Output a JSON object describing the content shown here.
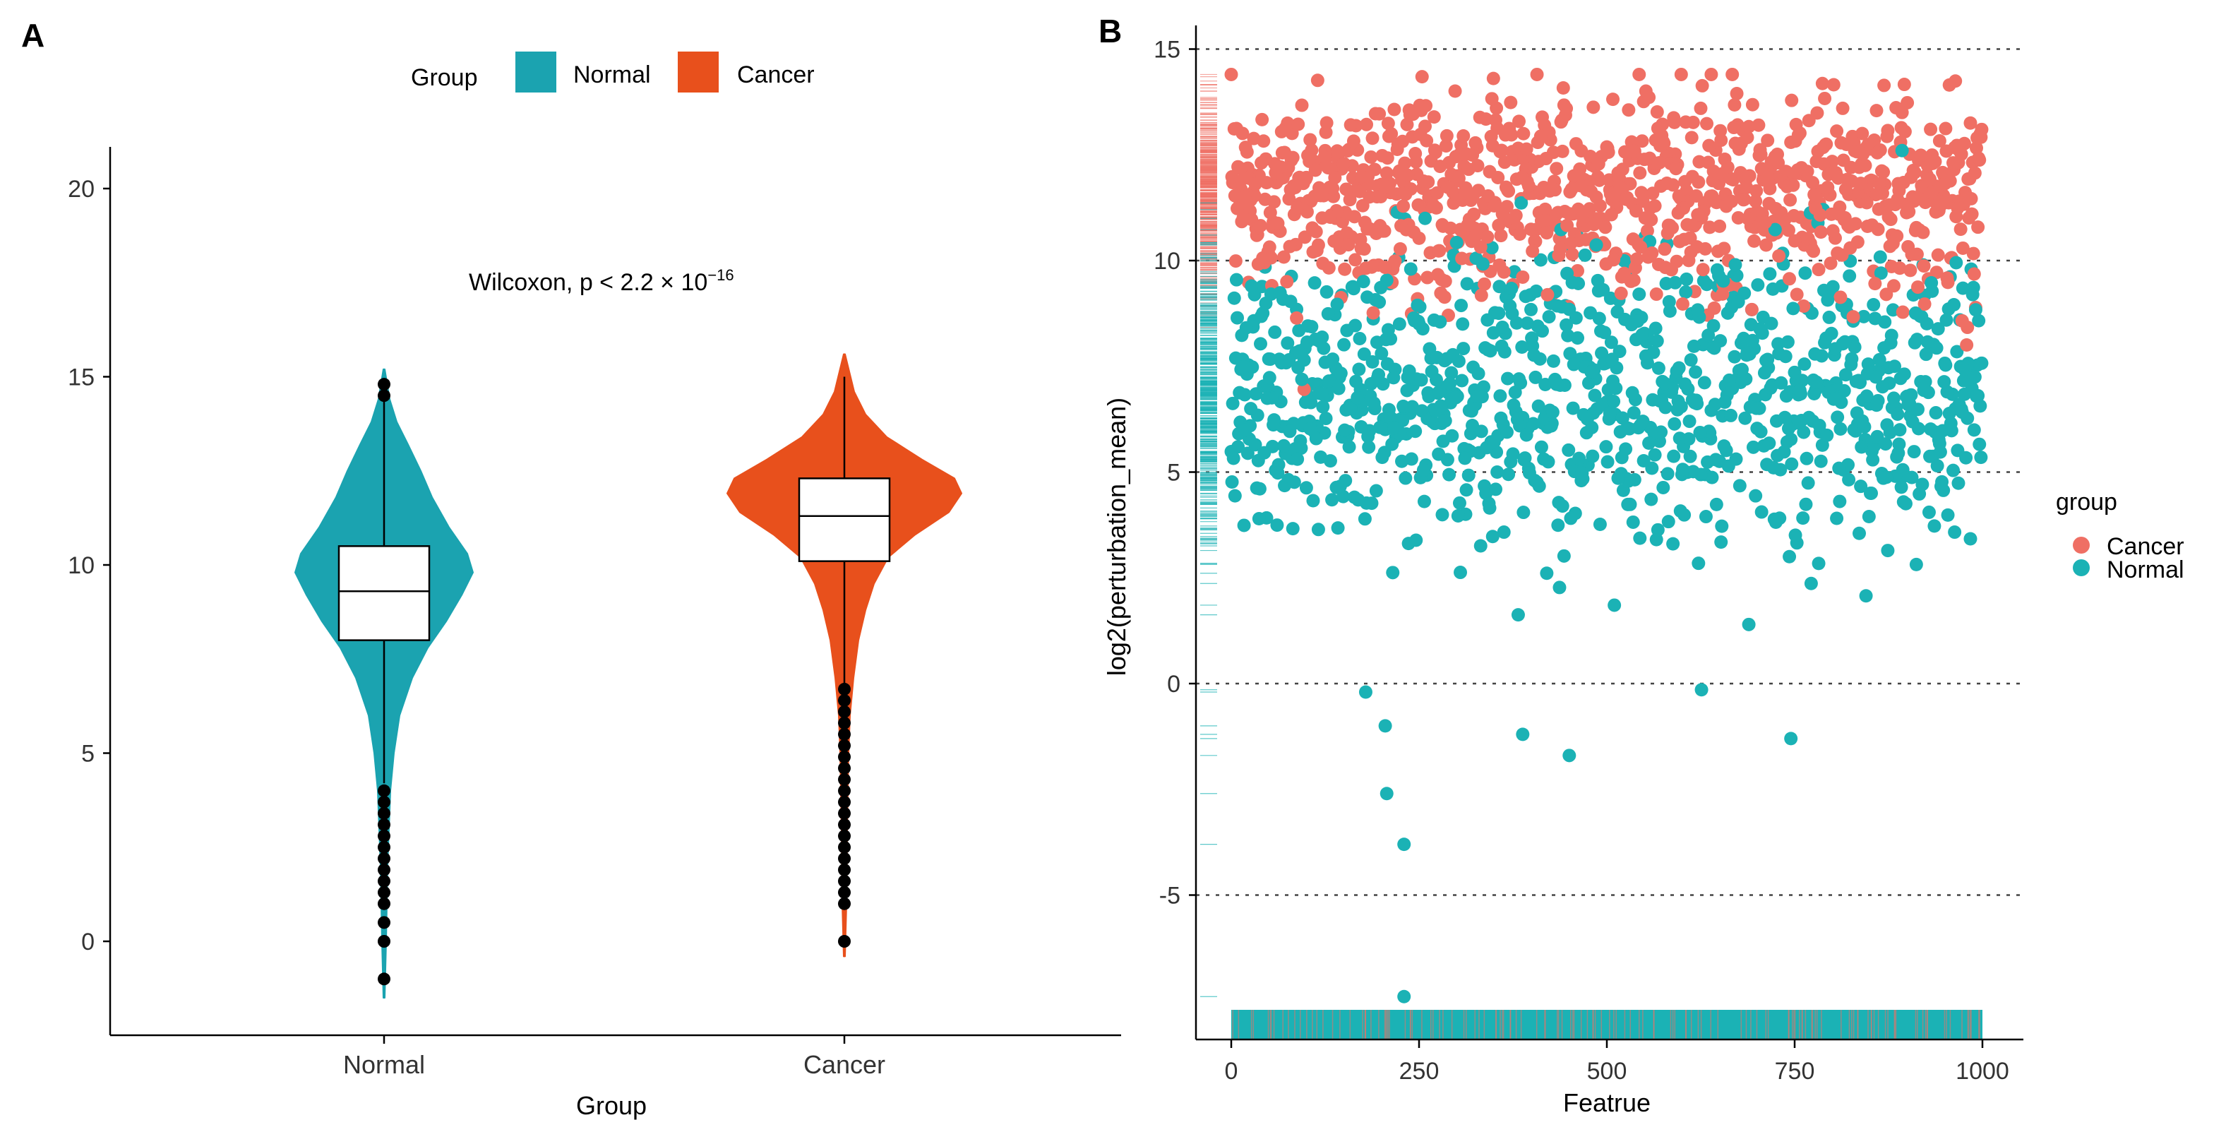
{
  "chart_data": [
    {
      "panel": "A",
      "type": "violin",
      "title": "",
      "legend": {
        "title": "Group",
        "position": "top",
        "entries": [
          {
            "label": "Normal",
            "color": "#1BA3B0"
          },
          {
            "label": "Cancer",
            "color": "#E8501C"
          }
        ]
      },
      "xlabel": "Group",
      "ylabel": "",
      "ylim": [
        -2.5,
        22
      ],
      "yticks": [
        0,
        5,
        10,
        15,
        20
      ],
      "grid": false,
      "annotation": {
        "text": "Wilcoxon, p < 2.2 × 10",
        "superscript": "−16",
        "y": 17.5
      },
      "groups": [
        {
          "name": "Normal",
          "color": "#1BA3B0",
          "box": {
            "q1": 8.0,
            "median": 9.3,
            "q3": 10.5,
            "whisker_low": 4.2,
            "whisker_high": 14.6
          },
          "violin_range": [
            -1.5,
            15.2
          ],
          "outliers_low": [
            -1.0,
            0.0,
            0.5,
            1.0,
            1.3,
            1.6,
            1.9,
            2.2,
            2.5,
            2.8,
            3.1,
            3.4,
            3.7,
            4.0
          ],
          "outliers_high": [
            14.5,
            14.8
          ]
        },
        {
          "name": "Cancer",
          "color": "#E8501C",
          "box": {
            "q1": 10.1,
            "median": 11.3,
            "q3": 12.3,
            "whisker_low": 6.8,
            "whisker_high": 15.0
          },
          "violin_range": [
            -0.4,
            15.6
          ],
          "outliers_low": [
            0.0,
            1.0,
            1.3,
            1.6,
            1.9,
            2.2,
            2.5,
            2.8,
            3.1,
            3.4,
            3.7,
            4.0,
            4.3,
            4.6,
            4.9,
            5.2,
            5.5,
            5.8,
            6.1,
            6.4,
            6.7
          ]
        }
      ]
    },
    {
      "panel": "B",
      "type": "scatter",
      "title": "",
      "xlabel": "Featrue",
      "ylabel": "log2(perturbation_mean)",
      "xlim": [
        -50,
        1050
      ],
      "ylim": [
        -8.3,
        15.5
      ],
      "xticks": [
        0,
        250,
        500,
        750,
        1000
      ],
      "yticks": [
        -5,
        0,
        5,
        10,
        15
      ],
      "grid": "dashed horizontal at y ticks",
      "legend": {
        "title": "group",
        "position": "right",
        "entries": [
          {
            "label": "Cancer",
            "color": "#EF6F64"
          },
          {
            "label": "Normal",
            "color": "#1BB2B5"
          }
        ]
      },
      "series": [
        {
          "name": "Cancer",
          "color": "#EF6F64",
          "n_points": 1000,
          "distribution": "approximately normal, mean 11.5, sd 1.2, range 1.4 to 14.5"
        },
        {
          "name": "Normal",
          "color": "#1BB2B5",
          "n_points": 1000,
          "distribution": "approximately normal, mean 6.8, sd 1.8, range -7.4 to 12.6",
          "notable_points": [
            {
              "x": 230,
              "y": -7.4
            },
            {
              "x": 230,
              "y": -3.8
            },
            {
              "x": 207,
              "y": -2.6
            },
            {
              "x": 450,
              "y": -1.7
            },
            {
              "x": 388,
              "y": -1.2
            },
            {
              "x": 745,
              "y": -1.3
            },
            {
              "x": 205,
              "y": -1.0
            }
          ]
        }
      ],
      "rug": {
        "x_axis": "stacked feature ticks for both groups",
        "y_axis": "ticks for both groups"
      }
    }
  ]
}
